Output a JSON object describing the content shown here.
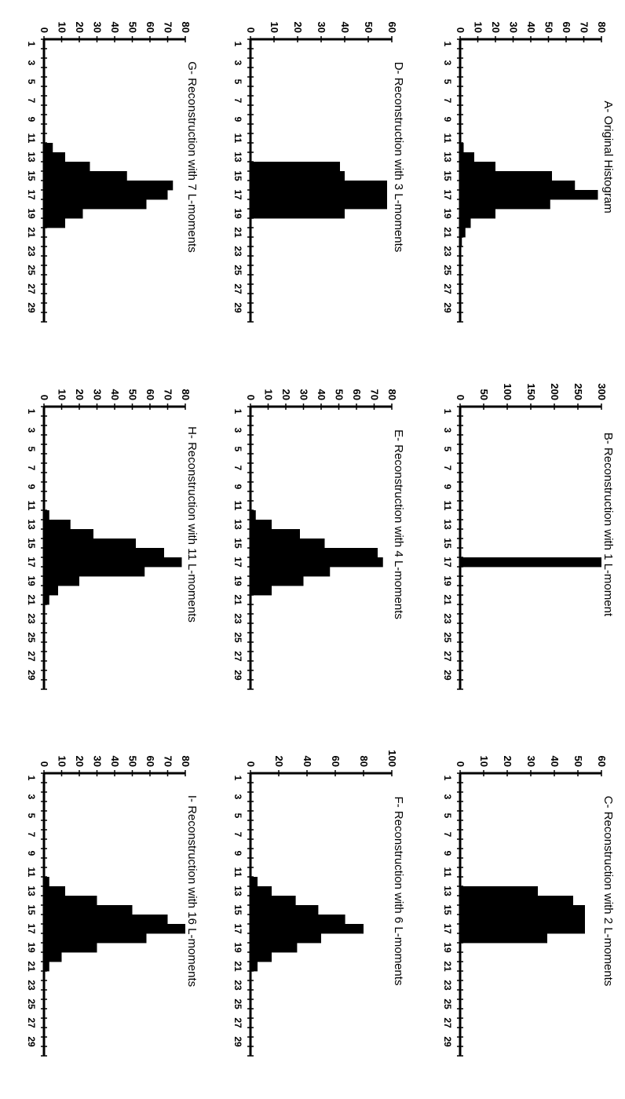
{
  "chart_data": [
    {
      "type": "bar",
      "title": "A- Original Histogram",
      "categories": [
        1,
        2,
        3,
        4,
        5,
        6,
        7,
        8,
        9,
        10,
        11,
        12,
        13,
        14,
        15,
        16,
        17,
        18,
        19,
        20,
        21,
        22,
        23,
        24,
        25,
        26,
        27,
        28,
        29,
        30
      ],
      "x_tick_labels": [
        "1",
        "3",
        "5",
        "7",
        "9",
        "11",
        "13",
        "15",
        "17",
        "19",
        "21",
        "23",
        "25",
        "27",
        "29"
      ],
      "y_ticks": [
        0,
        10,
        20,
        30,
        40,
        50,
        60,
        70,
        80
      ],
      "ylim": [
        0,
        80
      ],
      "values": [
        0,
        0,
        0,
        0,
        0,
        0,
        0,
        0,
        0,
        0,
        0,
        2,
        8,
        20,
        52,
        65,
        78,
        51,
        20,
        6,
        3,
        1,
        0,
        0,
        0,
        0,
        0,
        0,
        0,
        0
      ]
    },
    {
      "type": "bar",
      "title": "B- Reconstruction with 1 L-moment",
      "categories": [
        1,
        2,
        3,
        4,
        5,
        6,
        7,
        8,
        9,
        10,
        11,
        12,
        13,
        14,
        15,
        16,
        17,
        18,
        19,
        20,
        21,
        22,
        23,
        24,
        25,
        26,
        27,
        28,
        29,
        30
      ],
      "x_tick_labels": [
        "1",
        "3",
        "5",
        "7",
        "9",
        "11",
        "13",
        "15",
        "17",
        "19",
        "21",
        "23",
        "25",
        "27",
        "29"
      ],
      "y_ticks": [
        0,
        50,
        100,
        150,
        200,
        250,
        300
      ],
      "ylim": [
        0,
        300
      ],
      "values": [
        0,
        0,
        0,
        0,
        0,
        0,
        0,
        0,
        0,
        0,
        0,
        0,
        0,
        0,
        0,
        0,
        300,
        0,
        0,
        0,
        0,
        0,
        0,
        0,
        0,
        0,
        0,
        0,
        0,
        0
      ]
    },
    {
      "type": "bar",
      "title": "C- Reconstruction with 2 L-moments",
      "categories": [
        1,
        2,
        3,
        4,
        5,
        6,
        7,
        8,
        9,
        10,
        11,
        12,
        13,
        14,
        15,
        16,
        17,
        18,
        19,
        20,
        21,
        22,
        23,
        24,
        25,
        26,
        27,
        28,
        29,
        30
      ],
      "x_tick_labels": [
        "1",
        "3",
        "5",
        "7",
        "9",
        "11",
        "13",
        "15",
        "17",
        "19",
        "21",
        "23",
        "25",
        "27",
        "29"
      ],
      "y_ticks": [
        0,
        10,
        20,
        30,
        40,
        50,
        60
      ],
      "ylim": [
        0,
        60
      ],
      "values": [
        0,
        0,
        0,
        0,
        0,
        0,
        0,
        0,
        0,
        0,
        0,
        0,
        33,
        48,
        53,
        53,
        53,
        37,
        0,
        0,
        0,
        0,
        0,
        0,
        0,
        0,
        0,
        0,
        0,
        0
      ]
    },
    {
      "type": "bar",
      "title": "D- Reconstruction with 3 L-moments",
      "categories": [
        1,
        2,
        3,
        4,
        5,
        6,
        7,
        8,
        9,
        10,
        11,
        12,
        13,
        14,
        15,
        16,
        17,
        18,
        19,
        20,
        21,
        22,
        23,
        24,
        25,
        26,
        27,
        28,
        29,
        30
      ],
      "x_tick_labels": [
        "1",
        "3",
        "5",
        "7",
        "9",
        "11",
        "13",
        "15",
        "17",
        "19",
        "21",
        "23",
        "25",
        "27",
        "29"
      ],
      "y_ticks": [
        0,
        10,
        20,
        30,
        40,
        50,
        60
      ],
      "ylim": [
        0,
        60
      ],
      "values": [
        0,
        0,
        0,
        0,
        0,
        0,
        0,
        0,
        0,
        0,
        0,
        0,
        0,
        38,
        40,
        58,
        58,
        58,
        40,
        0,
        0,
        0,
        0,
        0,
        0,
        0,
        0,
        0,
        0,
        0
      ]
    },
    {
      "type": "bar",
      "title": "E- Reconstruction with 4 L-moments",
      "categories": [
        1,
        2,
        3,
        4,
        5,
        6,
        7,
        8,
        9,
        10,
        11,
        12,
        13,
        14,
        15,
        16,
        17,
        18,
        19,
        20,
        21,
        22,
        23,
        24,
        25,
        26,
        27,
        28,
        29,
        30
      ],
      "x_tick_labels": [
        "1",
        "3",
        "5",
        "7",
        "9",
        "11",
        "13",
        "15",
        "17",
        "19",
        "21",
        "23",
        "25",
        "27",
        "29"
      ],
      "y_ticks": [
        0,
        10,
        20,
        30,
        40,
        50,
        60,
        70,
        80
      ],
      "ylim": [
        0,
        80
      ],
      "values": [
        0,
        0,
        0,
        0,
        0,
        0,
        0,
        0,
        0,
        0,
        0,
        3,
        12,
        28,
        42,
        72,
        75,
        45,
        30,
        12,
        0,
        0,
        0,
        0,
        0,
        0,
        0,
        0,
        0,
        0
      ]
    },
    {
      "type": "bar",
      "title": "F- Reconstruction with 6 L-moments",
      "categories": [
        1,
        2,
        3,
        4,
        5,
        6,
        7,
        8,
        9,
        10,
        11,
        12,
        13,
        14,
        15,
        16,
        17,
        18,
        19,
        20,
        21,
        22,
        23,
        24,
        25,
        26,
        27,
        28,
        29,
        30
      ],
      "x_tick_labels": [
        "1",
        "3",
        "5",
        "7",
        "9",
        "11",
        "13",
        "15",
        "17",
        "19",
        "21",
        "23",
        "25",
        "27",
        "29"
      ],
      "y_ticks": [
        0,
        20,
        40,
        60,
        80,
        100
      ],
      "ylim": [
        0,
        100
      ],
      "values": [
        0,
        0,
        0,
        0,
        0,
        0,
        0,
        0,
        0,
        0,
        0,
        5,
        15,
        32,
        48,
        67,
        80,
        50,
        33,
        15,
        5,
        0,
        0,
        0,
        0,
        0,
        0,
        0,
        0,
        0
      ]
    },
    {
      "type": "bar",
      "title": "G- Reconstruction with 7 L-moments",
      "categories": [
        1,
        2,
        3,
        4,
        5,
        6,
        7,
        8,
        9,
        10,
        11,
        12,
        13,
        14,
        15,
        16,
        17,
        18,
        19,
        20,
        21,
        22,
        23,
        24,
        25,
        26,
        27,
        28,
        29,
        30
      ],
      "x_tick_labels": [
        "1",
        "3",
        "5",
        "7",
        "9",
        "11",
        "13",
        "15",
        "17",
        "19",
        "21",
        "23",
        "25",
        "27",
        "29"
      ],
      "y_ticks": [
        0,
        10,
        20,
        30,
        40,
        50,
        60,
        70,
        80
      ],
      "ylim": [
        0,
        80
      ],
      "values": [
        0,
        0,
        0,
        0,
        0,
        0,
        0,
        0,
        0,
        0,
        0,
        5,
        12,
        26,
        47,
        73,
        70,
        58,
        22,
        12,
        0,
        0,
        0,
        0,
        0,
        0,
        0,
        0,
        0,
        0
      ]
    },
    {
      "type": "bar",
      "title": "H- Reconstruction with 11 L-moments",
      "categories": [
        1,
        2,
        3,
        4,
        5,
        6,
        7,
        8,
        9,
        10,
        11,
        12,
        13,
        14,
        15,
        16,
        17,
        18,
        19,
        20,
        21,
        22,
        23,
        24,
        25,
        26,
        27,
        28,
        29,
        30
      ],
      "x_tick_labels": [
        "1",
        "3",
        "5",
        "7",
        "9",
        "11",
        "13",
        "15",
        "17",
        "19",
        "21",
        "23",
        "25",
        "27",
        "29"
      ],
      "y_ticks": [
        0,
        10,
        20,
        30,
        40,
        50,
        60,
        70,
        80
      ],
      "ylim": [
        0,
        80
      ],
      "values": [
        0,
        0,
        0,
        0,
        0,
        0,
        0,
        0,
        0,
        0,
        0,
        3,
        15,
        28,
        52,
        68,
        78,
        57,
        20,
        8,
        3,
        0,
        0,
        0,
        0,
        0,
        0,
        0,
        0,
        0
      ]
    },
    {
      "type": "bar",
      "title": "I- Reconstruction with 16 L-moments",
      "categories": [
        1,
        2,
        3,
        4,
        5,
        6,
        7,
        8,
        9,
        10,
        11,
        12,
        13,
        14,
        15,
        16,
        17,
        18,
        19,
        20,
        21,
        22,
        23,
        24,
        25,
        26,
        27,
        28,
        29,
        30
      ],
      "x_tick_labels": [
        "1",
        "3",
        "5",
        "7",
        "9",
        "11",
        "13",
        "15",
        "17",
        "19",
        "21",
        "23",
        "25",
        "27",
        "29"
      ],
      "y_ticks": [
        0,
        10,
        20,
        30,
        40,
        50,
        60,
        70,
        80
      ],
      "ylim": [
        0,
        80
      ],
      "values": [
        0,
        0,
        0,
        0,
        0,
        0,
        0,
        0,
        0,
        0,
        0,
        3,
        12,
        30,
        50,
        70,
        80,
        58,
        30,
        10,
        3,
        0,
        0,
        0,
        0,
        0,
        0,
        0,
        0,
        0
      ]
    }
  ]
}
